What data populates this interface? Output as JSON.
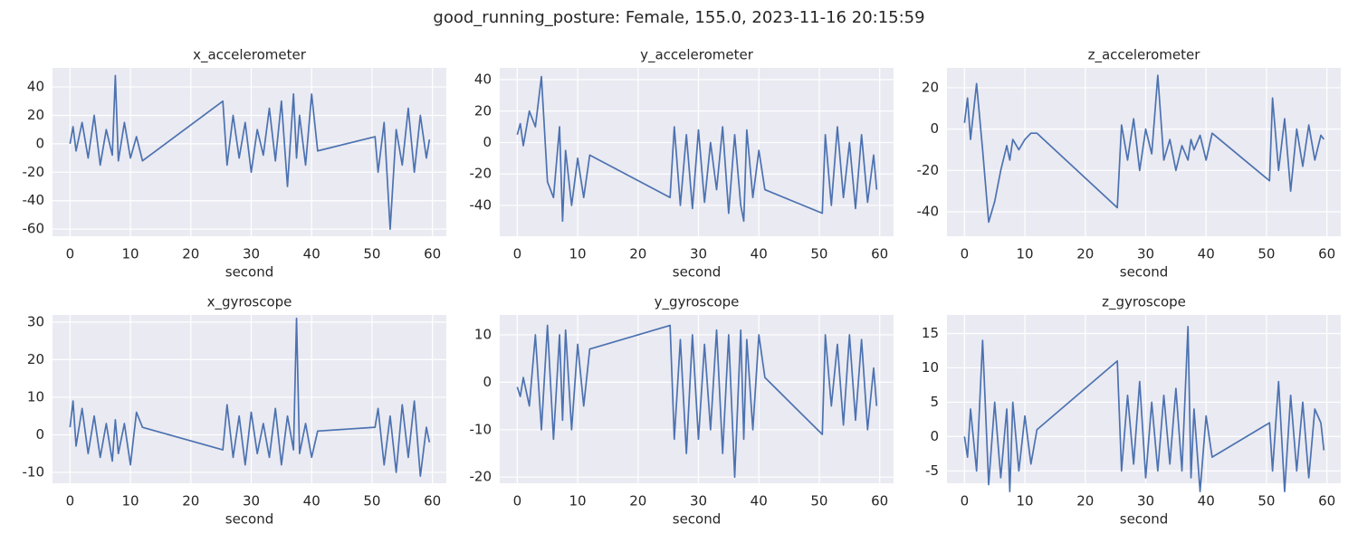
{
  "title": "good_running_posture: Female, 155.0, 2023-11-16 20:15:59",
  "chart_data": [
    {
      "type": "line",
      "title": "x_accelerometer",
      "xlabel": "second",
      "color": "#4c72b0",
      "grid": true,
      "x": [
        0,
        0.5,
        1,
        2,
        3,
        4,
        5,
        6,
        7,
        7.5,
        8,
        9,
        10,
        11,
        12,
        25.3,
        26,
        27,
        28,
        29,
        30,
        31,
        32,
        33,
        34,
        35,
        36,
        37,
        37.5,
        38,
        39,
        40,
        41,
        50.5,
        51,
        52,
        53,
        54,
        55,
        56,
        57,
        58,
        59,
        59.5
      ],
      "values": [
        0,
        12,
        -5,
        15,
        -10,
        20,
        -15,
        10,
        -8,
        48,
        -12,
        15,
        -10,
        5,
        -12,
        30,
        -15,
        20,
        -10,
        15,
        -20,
        10,
        -8,
        25,
        -12,
        30,
        -30,
        35,
        -10,
        20,
        -15,
        35,
        -5,
        5,
        -20,
        15,
        -60,
        10,
        -15,
        25,
        -20,
        20,
        -10,
        3
      ],
      "xlim": [
        -2.9,
        62.3
      ],
      "ylim": [
        -65,
        53.4
      ],
      "xticks": [
        0,
        10,
        20,
        30,
        40,
        50,
        60
      ],
      "yticks": [
        -60,
        -40,
        -20,
        0,
        20,
        40
      ]
    },
    {
      "type": "line",
      "title": "y_accelerometer",
      "xlabel": "second",
      "color": "#4c72b0",
      "grid": true,
      "x": [
        0,
        0.5,
        1,
        2,
        3,
        4,
        5,
        6,
        7,
        7.5,
        8,
        9,
        10,
        11,
        12,
        25.3,
        26,
        27,
        28,
        29,
        30,
        31,
        32,
        33,
        34,
        35,
        36,
        37,
        37.5,
        38,
        39,
        40,
        41,
        50.5,
        51,
        52,
        53,
        54,
        55,
        56,
        57,
        58,
        59,
        59.5
      ],
      "values": [
        5,
        12,
        -2,
        20,
        10,
        42,
        -25,
        -35,
        10,
        -50,
        -5,
        -40,
        -10,
        -35,
        -8,
        -35,
        10,
        -40,
        5,
        -42,
        8,
        -38,
        0,
        -30,
        10,
        -45,
        5,
        -40,
        -50,
        8,
        -35,
        -5,
        -30,
        -45,
        5,
        -40,
        10,
        -35,
        0,
        -42,
        5,
        -38,
        -8,
        -30
      ],
      "xlim": [
        -2.9,
        62.3
      ],
      "ylim": [
        -59.6,
        47.5
      ],
      "xticks": [
        0,
        10,
        20,
        30,
        40,
        50,
        60
      ],
      "yticks": [
        -40,
        -20,
        0,
        20,
        40
      ]
    },
    {
      "type": "line",
      "title": "z_accelerometer",
      "xlabel": "second",
      "color": "#4c72b0",
      "grid": true,
      "x": [
        0,
        0.5,
        1,
        2,
        3,
        4,
        5,
        6,
        7,
        7.5,
        8,
        9,
        10,
        11,
        12,
        25.3,
        26,
        27,
        28,
        29,
        30,
        31,
        32,
        33,
        34,
        35,
        36,
        37,
        37.5,
        38,
        39,
        40,
        41,
        50.5,
        51,
        52,
        53,
        54,
        55,
        56,
        57,
        58,
        59,
        59.5
      ],
      "values": [
        3,
        15,
        -5,
        22,
        -10,
        -45,
        -35,
        -20,
        -8,
        -15,
        -5,
        -10,
        -5,
        -2,
        -2,
        -38,
        2,
        -15,
        5,
        -20,
        0,
        -12,
        26,
        -15,
        -5,
        -20,
        -8,
        -15,
        -5,
        -10,
        -3,
        -15,
        -2,
        -25,
        15,
        -20,
        5,
        -30,
        0,
        -18,
        2,
        -15,
        -3,
        -5
      ],
      "xlim": [
        -2.9,
        62.3
      ],
      "ylim": [
        -51.8,
        29.6
      ],
      "xticks": [
        0,
        10,
        20,
        30,
        40,
        50,
        60
      ],
      "yticks": [
        -40,
        -20,
        0,
        20
      ]
    },
    {
      "type": "line",
      "title": "x_gyroscope",
      "xlabel": "second",
      "color": "#4c72b0",
      "grid": true,
      "x": [
        0,
        0.5,
        1,
        2,
        3,
        4,
        5,
        6,
        7,
        7.5,
        8,
        9,
        10,
        11,
        12,
        25.3,
        26,
        27,
        28,
        29,
        30,
        31,
        32,
        33,
        34,
        35,
        36,
        37,
        37.5,
        38,
        39,
        40,
        41,
        50.5,
        51,
        52,
        53,
        54,
        55,
        56,
        57,
        58,
        59,
        59.5
      ],
      "values": [
        2,
        9,
        -3,
        7,
        -5,
        5,
        -6,
        3,
        -7,
        4,
        -5,
        3,
        -8,
        6,
        2,
        -4,
        8,
        -6,
        5,
        -8,
        6,
        -5,
        3,
        -6,
        7,
        -8,
        5,
        -4,
        31,
        -5,
        3,
        -6,
        1,
        2,
        7,
        -8,
        5,
        -10,
        8,
        -6,
        9,
        -11,
        2,
        -2
      ],
      "xlim": [
        -2.9,
        62.3
      ],
      "ylim": [
        -12.9,
        31.9
      ],
      "xticks": [
        0,
        10,
        20,
        30,
        40,
        50,
        60
      ],
      "yticks": [
        -10,
        0,
        10,
        20,
        30
      ]
    },
    {
      "type": "line",
      "title": "y_gyroscope",
      "xlabel": "second",
      "color": "#4c72b0",
      "grid": true,
      "x": [
        0,
        0.5,
        1,
        2,
        3,
        4,
        5,
        6,
        7,
        7.5,
        8,
        9,
        10,
        11,
        12,
        25.3,
        26,
        27,
        28,
        29,
        30,
        31,
        32,
        33,
        34,
        35,
        36,
        37,
        37.5,
        38,
        39,
        40,
        41,
        50.5,
        51,
        52,
        53,
        54,
        55,
        56,
        57,
        58,
        59,
        59.5
      ],
      "values": [
        -1,
        -3,
        1,
        -5,
        10,
        -10,
        12,
        -12,
        10,
        -8,
        11,
        -10,
        8,
        -5,
        7,
        12,
        -12,
        9,
        -15,
        10,
        -12,
        8,
        -10,
        11,
        -15,
        10,
        -20,
        11,
        -12,
        9,
        -10,
        10,
        1,
        -11,
        10,
        -5,
        8,
        -9,
        10,
        -8,
        9,
        -10,
        3,
        -5
      ],
      "xlim": [
        -2.9,
        62.3
      ],
      "ylim": [
        -21.3,
        14.2
      ],
      "xticks": [
        0,
        10,
        20,
        30,
        40,
        50,
        60
      ],
      "yticks": [
        -20,
        -10,
        0,
        10
      ]
    },
    {
      "type": "line",
      "title": "z_gyroscope",
      "xlabel": "second",
      "color": "#4c72b0",
      "grid": true,
      "x": [
        0,
        0.5,
        1,
        2,
        3,
        4,
        5,
        6,
        7,
        7.5,
        8,
        9,
        10,
        11,
        12,
        25.3,
        26,
        27,
        28,
        29,
        30,
        31,
        32,
        33,
        34,
        35,
        36,
        37,
        37.5,
        38,
        39,
        40,
        41,
        50.5,
        51,
        52,
        53,
        54,
        55,
        56,
        57,
        58,
        59,
        59.5
      ],
      "values": [
        0,
        -3,
        4,
        -5,
        14,
        -7,
        5,
        -6,
        4,
        -8,
        5,
        -5,
        3,
        -4,
        1,
        11,
        -5,
        6,
        -4,
        8,
        -6,
        5,
        -5,
        6,
        -4,
        7,
        -5,
        16,
        -6,
        4,
        -8,
        3,
        -3,
        2,
        -5,
        8,
        -8,
        6,
        -5,
        5,
        -6,
        4,
        2,
        -2
      ],
      "xlim": [
        -2.9,
        62.3
      ],
      "ylim": [
        -6.8,
        17.7
      ],
      "xticks": [
        0,
        10,
        20,
        30,
        40,
        50,
        60
      ],
      "yticks": [
        -5,
        0,
        5,
        10,
        15
      ]
    }
  ]
}
